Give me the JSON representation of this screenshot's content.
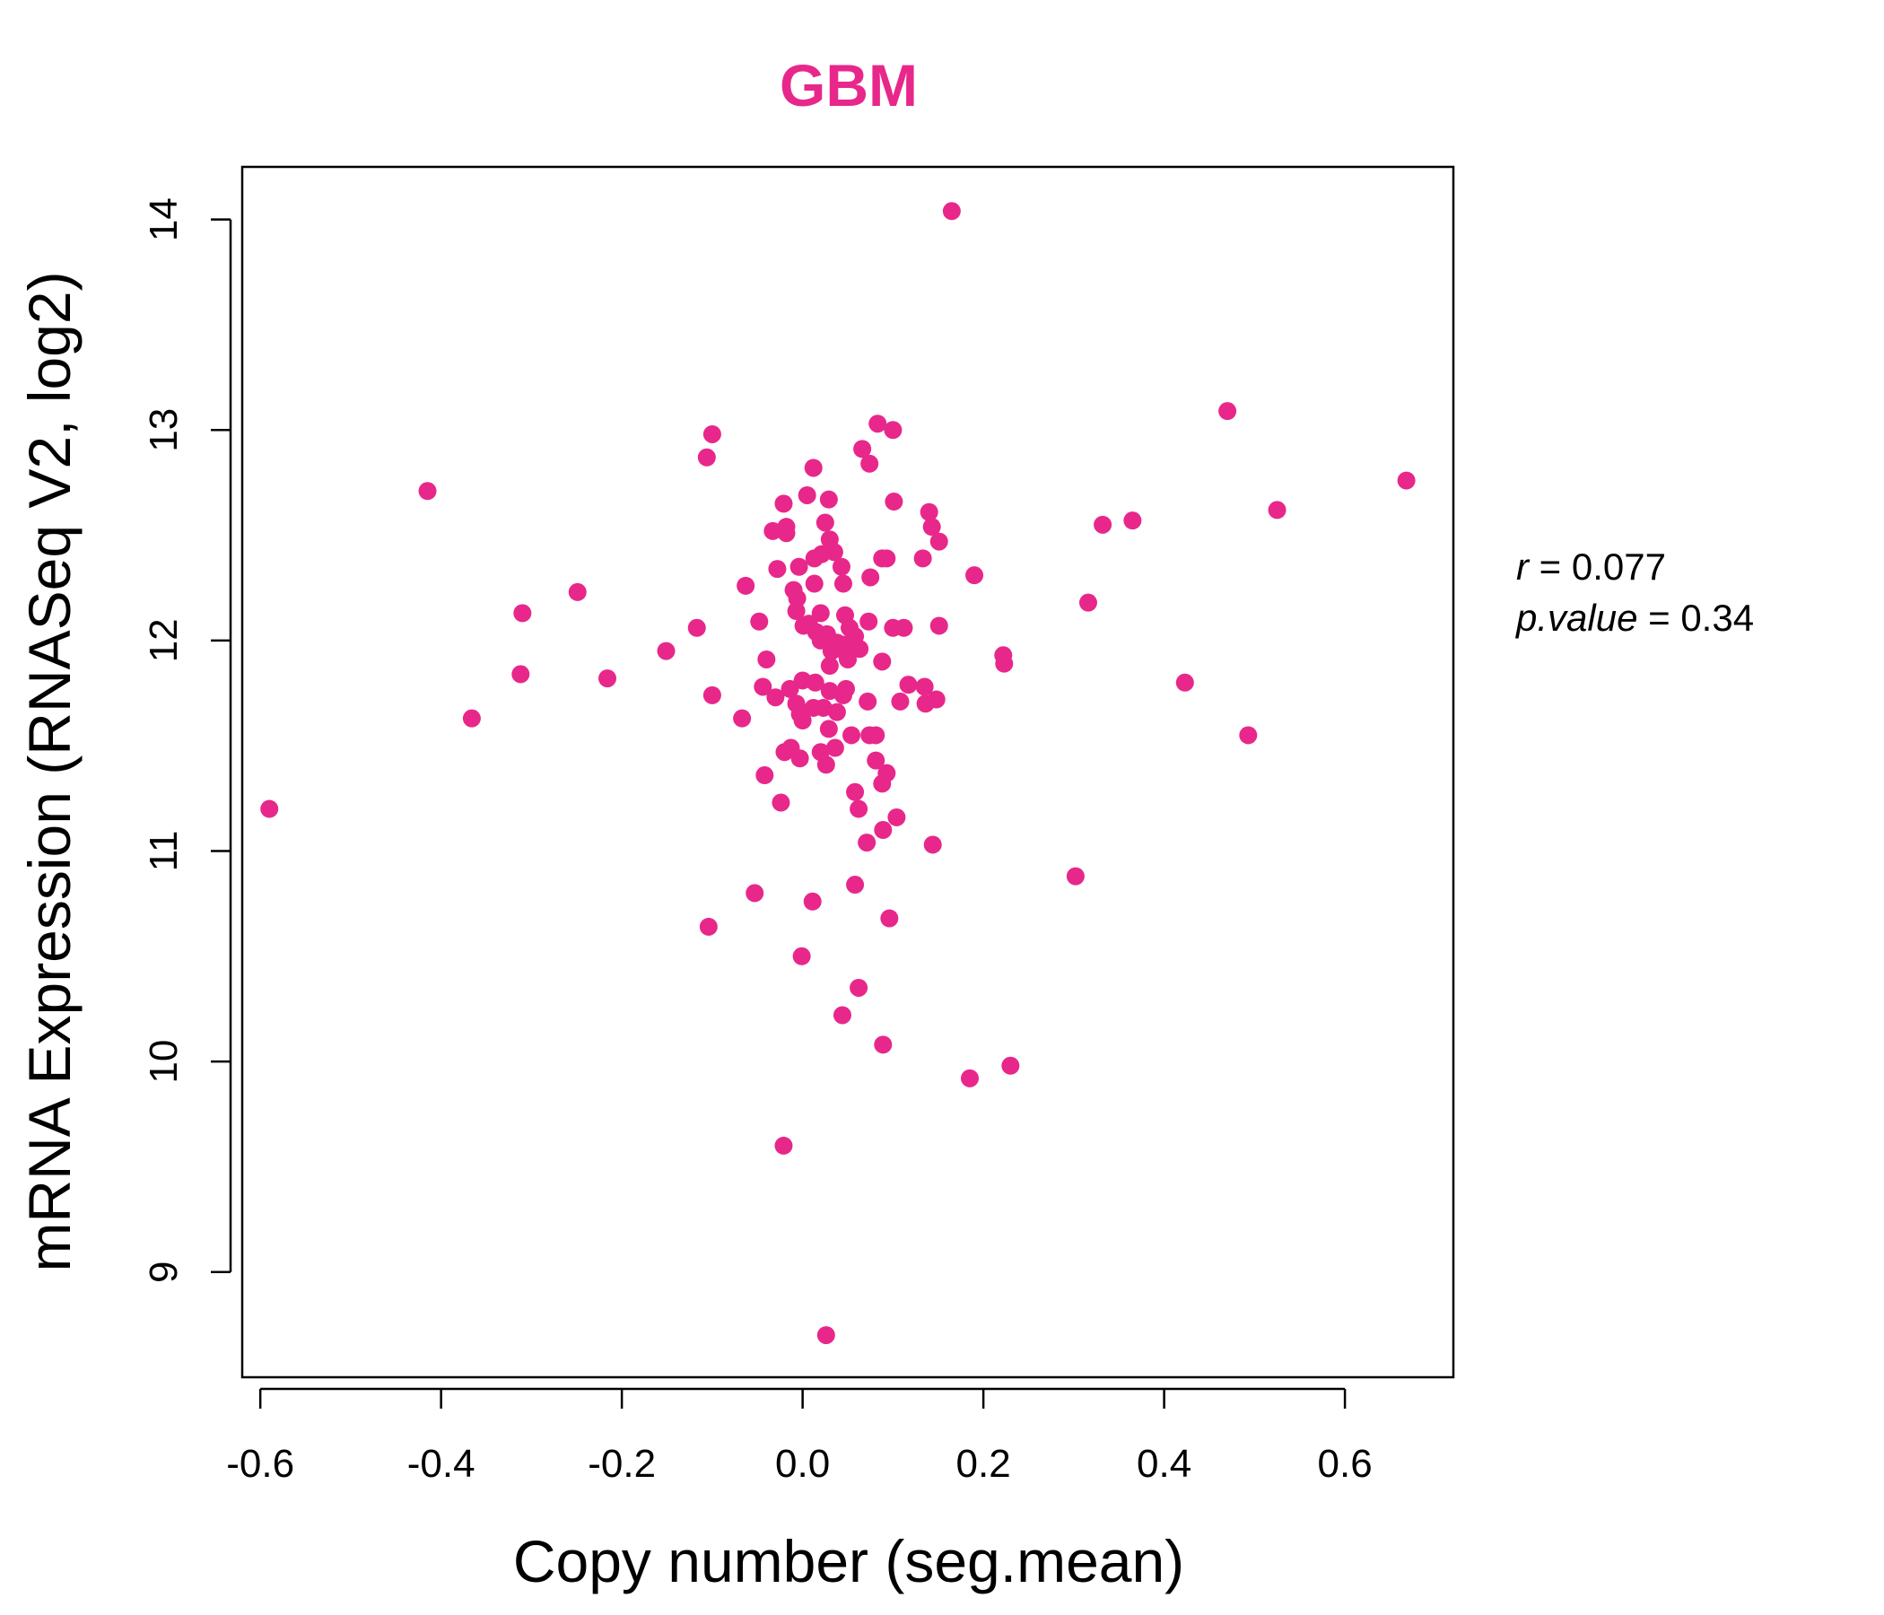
{
  "chart_data": {
    "type": "scatter",
    "title": "GBM",
    "xlabel": "Copy number (seg.mean)",
    "ylabel": "mRNA Expression (RNASeq V2, log2)",
    "xlim": [
      -0.62,
      0.72
    ],
    "ylim": [
      8.5,
      14.25
    ],
    "x_ticks": [
      -0.6,
      -0.4,
      -0.2,
      0.0,
      0.2,
      0.4,
      0.6
    ],
    "x_tick_labels": [
      "-0.6",
      "-0.4",
      "-0.2",
      "0.0",
      "0.2",
      "0.4",
      "0.6"
    ],
    "y_ticks": [
      9,
      10,
      11,
      12,
      13,
      14
    ],
    "y_tick_labels": [
      "9",
      "10",
      "11",
      "12",
      "13",
      "14"
    ],
    "grid": false,
    "color": "#e8278b",
    "stats": {
      "r_label": "r",
      "r_value": "0.077",
      "p_label": "p.value",
      "p_value": "0.34"
    },
    "points": [
      {
        "x": 0.165,
        "y": 14.04
      },
      {
        "x": 0.47,
        "y": 13.09
      },
      {
        "x": 0.083,
        "y": 13.03
      },
      {
        "x": 0.1,
        "y": 13.0
      },
      {
        "x": -0.1,
        "y": 12.98
      },
      {
        "x": 0.066,
        "y": 12.91
      },
      {
        "x": -0.106,
        "y": 12.87
      },
      {
        "x": 0.074,
        "y": 12.84
      },
      {
        "x": 0.012,
        "y": 12.82
      },
      {
        "x": -0.415,
        "y": 12.71
      },
      {
        "x": 0.668,
        "y": 12.76
      },
      {
        "x": 0.005,
        "y": 12.69
      },
      {
        "x": 0.029,
        "y": 12.67
      },
      {
        "x": -0.021,
        "y": 12.65
      },
      {
        "x": 0.101,
        "y": 12.66
      },
      {
        "x": 0.525,
        "y": 12.62
      },
      {
        "x": 0.14,
        "y": 12.61
      },
      {
        "x": 0.365,
        "y": 12.57
      },
      {
        "x": 0.025,
        "y": 12.56
      },
      {
        "x": 0.332,
        "y": 12.55
      },
      {
        "x": -0.018,
        "y": 12.54
      },
      {
        "x": 0.143,
        "y": 12.54
      },
      {
        "x": -0.033,
        "y": 12.52
      },
      {
        "x": -0.018,
        "y": 12.51
      },
      {
        "x": 0.03,
        "y": 12.48
      },
      {
        "x": 0.151,
        "y": 12.47
      },
      {
        "x": 0.035,
        "y": 12.42
      },
      {
        "x": 0.021,
        "y": 12.41
      },
      {
        "x": 0.013,
        "y": 12.39
      },
      {
        "x": 0.088,
        "y": 12.39
      },
      {
        "x": 0.093,
        "y": 12.39
      },
      {
        "x": 0.133,
        "y": 12.39
      },
      {
        "x": -0.004,
        "y": 12.35
      },
      {
        "x": 0.043,
        "y": 12.35
      },
      {
        "x": -0.028,
        "y": 12.34
      },
      {
        "x": 0.075,
        "y": 12.3
      },
      {
        "x": 0.19,
        "y": 12.31
      },
      {
        "x": 0.013,
        "y": 12.27
      },
      {
        "x": 0.045,
        "y": 12.27
      },
      {
        "x": -0.063,
        "y": 12.26
      },
      {
        "x": -0.249,
        "y": 12.23
      },
      {
        "x": -0.01,
        "y": 12.24
      },
      {
        "x": -0.006,
        "y": 12.2
      },
      {
        "x": 0.316,
        "y": 12.18
      },
      {
        "x": -0.31,
        "y": 12.13
      },
      {
        "x": -0.007,
        "y": 12.14
      },
      {
        "x": 0.02,
        "y": 12.13
      },
      {
        "x": 0.047,
        "y": 12.12
      },
      {
        "x": -0.048,
        "y": 12.09
      },
      {
        "x": 0.073,
        "y": 12.09
      },
      {
        "x": 0.007,
        "y": 12.08
      },
      {
        "x": -0.117,
        "y": 12.06
      },
      {
        "x": 0.001,
        "y": 12.07
      },
      {
        "x": 0.052,
        "y": 12.06
      },
      {
        "x": 0.1,
        "y": 12.06
      },
      {
        "x": 0.112,
        "y": 12.06
      },
      {
        "x": 0.151,
        "y": 12.07
      },
      {
        "x": 0.015,
        "y": 12.04
      },
      {
        "x": 0.027,
        "y": 12.03
      },
      {
        "x": 0.058,
        "y": 12.02
      },
      {
        "x": 0.02,
        "y": 12.0
      },
      {
        "x": 0.038,
        "y": 11.99
      },
      {
        "x": 0.046,
        "y": 11.98
      },
      {
        "x": 0.063,
        "y": 11.96
      },
      {
        "x": -0.151,
        "y": 11.95
      },
      {
        "x": 0.032,
        "y": 11.95
      },
      {
        "x": 0.048,
        "y": 11.94
      },
      {
        "x": 0.222,
        "y": 11.93
      },
      {
        "x": -0.04,
        "y": 11.91
      },
      {
        "x": 0.05,
        "y": 11.91
      },
      {
        "x": 0.088,
        "y": 11.9
      },
      {
        "x": 0.223,
        "y": 11.89
      },
      {
        "x": 0.03,
        "y": 11.88
      },
      {
        "x": -0.312,
        "y": 11.84
      },
      {
        "x": -0.216,
        "y": 11.82
      },
      {
        "x": 0.0,
        "y": 11.81
      },
      {
        "x": 0.014,
        "y": 11.8
      },
      {
        "x": 0.423,
        "y": 11.8
      },
      {
        "x": 0.117,
        "y": 11.79
      },
      {
        "x": 0.135,
        "y": 11.78
      },
      {
        "x": -0.044,
        "y": 11.78
      },
      {
        "x": -0.014,
        "y": 11.77
      },
      {
        "x": 0.048,
        "y": 11.77
      },
      {
        "x": 0.03,
        "y": 11.76
      },
      {
        "x": -0.1,
        "y": 11.74
      },
      {
        "x": -0.03,
        "y": 11.73
      },
      {
        "x": 0.045,
        "y": 11.74
      },
      {
        "x": 0.148,
        "y": 11.72
      },
      {
        "x": 0.072,
        "y": 11.71
      },
      {
        "x": 0.108,
        "y": 11.71
      },
      {
        "x": 0.136,
        "y": 11.7
      },
      {
        "x": -0.007,
        "y": 11.7
      },
      {
        "x": 0.012,
        "y": 11.68
      },
      {
        "x": 0.023,
        "y": 11.68
      },
      {
        "x": -0.003,
        "y": 11.65
      },
      {
        "x": 0.038,
        "y": 11.66
      },
      {
        "x": -0.366,
        "y": 11.63
      },
      {
        "x": -0.067,
        "y": 11.63
      },
      {
        "x": 0.0,
        "y": 11.62
      },
      {
        "x": 0.029,
        "y": 11.58
      },
      {
        "x": 0.054,
        "y": 11.55
      },
      {
        "x": 0.074,
        "y": 11.55
      },
      {
        "x": 0.081,
        "y": 11.55
      },
      {
        "x": 0.493,
        "y": 11.55
      },
      {
        "x": -0.013,
        "y": 11.49
      },
      {
        "x": 0.036,
        "y": 11.49
      },
      {
        "x": -0.02,
        "y": 11.47
      },
      {
        "x": 0.02,
        "y": 11.47
      },
      {
        "x": -0.003,
        "y": 11.44
      },
      {
        "x": 0.081,
        "y": 11.43
      },
      {
        "x": 0.026,
        "y": 11.41
      },
      {
        "x": -0.042,
        "y": 11.36
      },
      {
        "x": 0.093,
        "y": 11.37
      },
      {
        "x": 0.088,
        "y": 11.32
      },
      {
        "x": 0.058,
        "y": 11.28
      },
      {
        "x": -0.024,
        "y": 11.23
      },
      {
        "x": -0.59,
        "y": 11.2
      },
      {
        "x": 0.062,
        "y": 11.2
      },
      {
        "x": 0.104,
        "y": 11.16
      },
      {
        "x": 0.089,
        "y": 11.1
      },
      {
        "x": 0.071,
        "y": 11.04
      },
      {
        "x": 0.144,
        "y": 11.03
      },
      {
        "x": 0.302,
        "y": 10.88
      },
      {
        "x": 0.058,
        "y": 10.84
      },
      {
        "x": -0.053,
        "y": 10.8
      },
      {
        "x": 0.011,
        "y": 10.76
      },
      {
        "x": 0.096,
        "y": 10.68
      },
      {
        "x": -0.104,
        "y": 10.64
      },
      {
        "x": -0.001,
        "y": 10.5
      },
      {
        "x": 0.062,
        "y": 10.35
      },
      {
        "x": 0.044,
        "y": 10.22
      },
      {
        "x": 0.089,
        "y": 10.08
      },
      {
        "x": 0.185,
        "y": 9.92
      },
      {
        "x": 0.23,
        "y": 9.98
      },
      {
        "x": -0.021,
        "y": 9.6
      },
      {
        "x": 0.026,
        "y": 8.7
      }
    ]
  }
}
